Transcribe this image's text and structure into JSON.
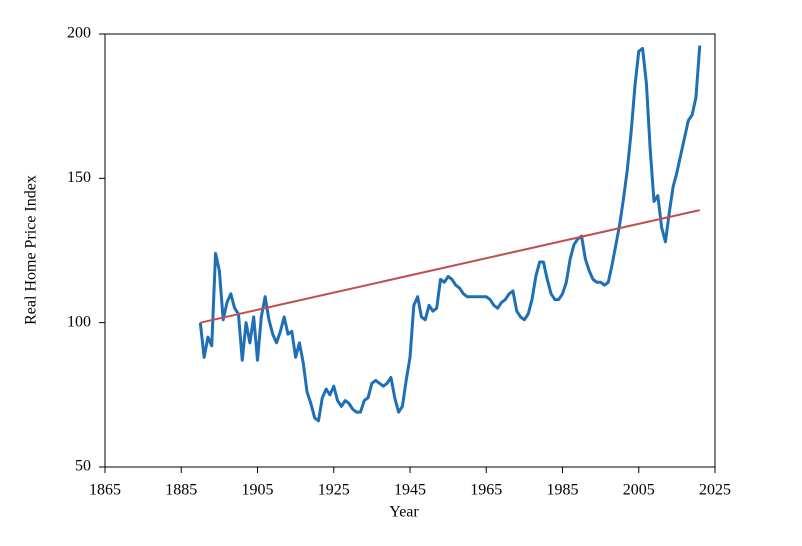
{
  "chart_data": {
    "type": "line",
    "xlabel": "Year",
    "ylabel": "Real Home Price Index",
    "xlim": [
      1865,
      2025
    ],
    "xticks": [
      1865,
      1885,
      1905,
      1925,
      1945,
      1965,
      1985,
      2005,
      2025
    ],
    "ylim": [
      50,
      200
    ],
    "yticks": [
      50,
      100,
      150,
      200
    ],
    "grid": false,
    "series": [
      {
        "color": "#1f6fb5",
        "x": [
          1890,
          1891,
          1892,
          1893,
          1894,
          1895,
          1896,
          1897,
          1898,
          1899,
          1900,
          1901,
          1902,
          1903,
          1904,
          1905,
          1906,
          1907,
          1908,
          1909,
          1910,
          1911,
          1912,
          1913,
          1914,
          1915,
          1916,
          1917,
          1918,
          1919,
          1920,
          1921,
          1922,
          1923,
          1924,
          1925,
          1926,
          1927,
          1928,
          1929,
          1930,
          1931,
          1932,
          1933,
          1934,
          1935,
          1936,
          1937,
          1938,
          1939,
          1940,
          1941,
          1942,
          1943,
          1944,
          1945,
          1946,
          1947,
          1948,
          1949,
          1950,
          1951,
          1952,
          1953,
          1954,
          1955,
          1956,
          1957,
          1958,
          1959,
          1960,
          1961,
          1962,
          1963,
          1964,
          1965,
          1966,
          1967,
          1968,
          1969,
          1970,
          1971,
          1972,
          1973,
          1974,
          1975,
          1976,
          1977,
          1978,
          1979,
          1980,
          1981,
          1982,
          1983,
          1984,
          1985,
          1986,
          1987,
          1988,
          1989,
          1990,
          1991,
          1992,
          1993,
          1994,
          1995,
          1996,
          1997,
          1998,
          1999,
          2000,
          2001,
          2002,
          2003,
          2004,
          2005,
          2006,
          2007,
          2008,
          2009,
          2010,
          2011,
          2012,
          2013,
          2014,
          2015,
          2016,
          2017,
          2018,
          2019,
          2020,
          2021
        ],
        "values": [
          100,
          88,
          95,
          92,
          124,
          118,
          101,
          107,
          110,
          105,
          103,
          87,
          100,
          93,
          102,
          87,
          102,
          109,
          101,
          96,
          93,
          97,
          102,
          96,
          97,
          88,
          93,
          86,
          76,
          72,
          67,
          66,
          74,
          77,
          75,
          78,
          73,
          71,
          73,
          72,
          70,
          69,
          69,
          73,
          74,
          79,
          80,
          79,
          78,
          79,
          81,
          74,
          69,
          71,
          80,
          88,
          106,
          109,
          102,
          101,
          106,
          104,
          105,
          115,
          114,
          116,
          115,
          113,
          112,
          110,
          109,
          109,
          109,
          109,
          109,
          109,
          108,
          106,
          105,
          107,
          108,
          110,
          111,
          104,
          102,
          101,
          103,
          108,
          116,
          121,
          121,
          115,
          110,
          108,
          108,
          110,
          114,
          122,
          127,
          129,
          130,
          122,
          118,
          115,
          114,
          114,
          113,
          114,
          120,
          127,
          134,
          143,
          153,
          166,
          182,
          194,
          195,
          183,
          160,
          142,
          144,
          133,
          128,
          138,
          147,
          152,
          158,
          164,
          170,
          172,
          178,
          196
        ]
      },
      {
        "color": "#c0504d",
        "x": [
          1890,
          2021
        ],
        "values": [
          100,
          139
        ]
      }
    ]
  }
}
